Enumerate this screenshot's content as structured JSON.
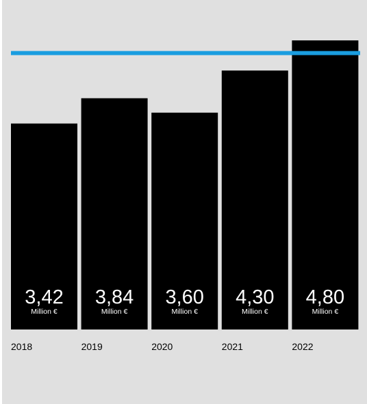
{
  "chart_data": {
    "type": "bar",
    "categories": [
      "2018",
      "2019",
      "2020",
      "2021",
      "2022"
    ],
    "values": [
      3.42,
      3.84,
      3.6,
      4.3,
      4.8
    ],
    "value_labels": [
      "3,42",
      "3,84",
      "3,60",
      "4,30",
      "4,80"
    ],
    "unit_label": "Million €",
    "reference_line": {
      "value": 4.59
    },
    "ylim": [
      0,
      5.12
    ],
    "grid": false,
    "legend": "none",
    "colors": {
      "background": "#e0e0e0",
      "bar": "#000000",
      "bar_text": "#ffffff",
      "reference_line": "#1a9de0",
      "axis_text": "#000000"
    }
  }
}
